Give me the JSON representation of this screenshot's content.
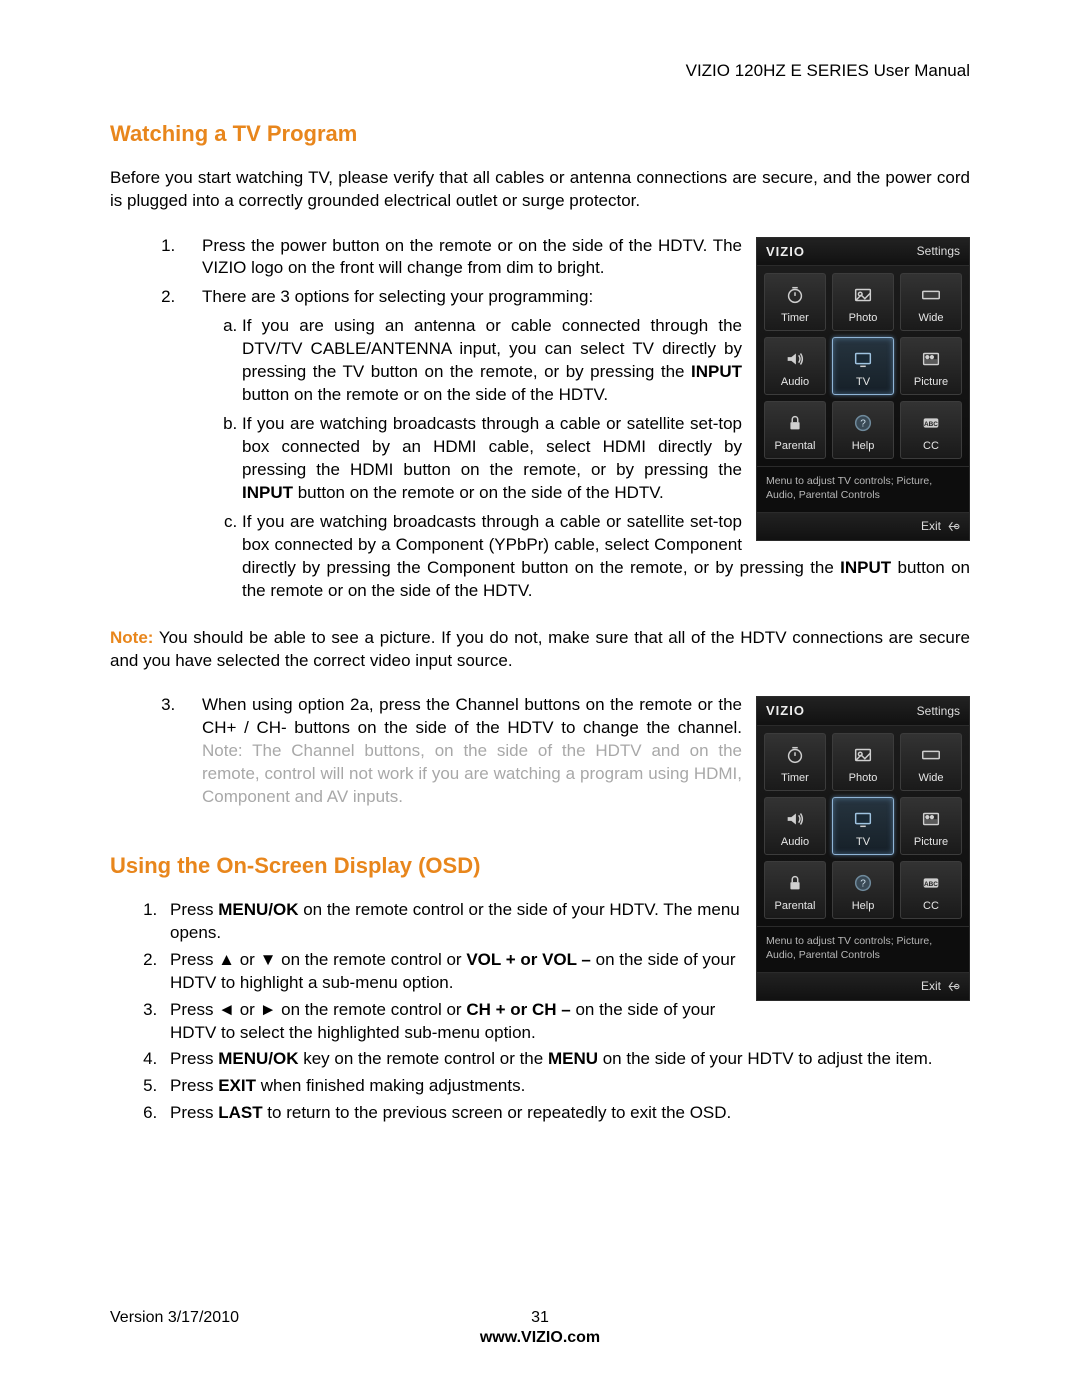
{
  "header": {
    "title": "VIZIO 120HZ E SERIES User Manual"
  },
  "section1": {
    "title": "Watching a TV Program",
    "intro": "Before you start watching TV, please verify that all cables or antenna connections are secure, and the power cord is plugged into a correctly grounded electrical outlet or surge protector.",
    "item1": "Press the power button on the remote or on the side of the HDTV. The VIZIO logo on the front will change from dim to bright.",
    "item2_lead": "There are 3 options for selecting your programming:",
    "item2a_pre": "If you are using an antenna or cable connected through the DTV/TV CABLE/ANTENNA input, you can select TV directly by pressing the TV button on the remote, or by pressing the ",
    "item2a_bold": "INPUT",
    "item2a_post": " button on the remote or on the side of the HDTV.",
    "item2b_pre": "If you are watching broadcasts through a cable or satellite set-top box connected by an HDMI cable, select HDMI directly by pressing the HDMI button on the remote, or by pressing the ",
    "item2b_bold": "INPUT",
    "item2b_post": " button on the remote or on the side of the HDTV.",
    "item2c_pre": "If you are watching broadcasts through a cable or satellite set-top box connected by a Component (YPbPr) cable, select Component directly by pressing the Component button on the remote, or by pressing the ",
    "item2c_bold": "INPUT",
    "item2c_post": " button on the remote or on the side of the HDTV.",
    "note_label": "Note:",
    "note_body": " You should be able to see a picture. If you do not, make sure that all of the HDTV connections are secure and you have selected the correct video input source.",
    "item3_pre": "When using option 2a, press the Channel buttons on the remote or the CH+ / CH- buttons on the side of the HDTV to change the channel. ",
    "item3_grey": "Note: The Channel buttons, on the side of the HDTV and on the remote, control will not work if you are watching a program using HDMI, Component and AV inputs."
  },
  "section2": {
    "title": "Using the On-Screen Display (OSD)",
    "s1_pre": "Press ",
    "s1_b1": "MENU/OK",
    "s1_post": " on the remote control or the side of your HDTV. The menu opens.",
    "s2_pre": "Press ▲ or ▼ on the remote control or ",
    "s2_b1": "VOL + or VOL –",
    "s2_post": " on the side of your HDTV to highlight a sub-menu option.",
    "s3_pre": "Press ◄ or ► on the remote control or ",
    "s3_b1": "CH + or CH –",
    "s3_post": " on the side of your HDTV to select the highlighted sub-menu option.",
    "s4_pre": "Press ",
    "s4_b1": "MENU/OK",
    "s4_mid": " key on the remote control or the ",
    "s4_b2": "MENU",
    "s4_post": " on the side of your HDTV to adjust the item.",
    "s5_pre": "Press ",
    "s5_b1": "EXIT",
    "s5_post": " when finished making adjustments.",
    "s6_pre": "Press ",
    "s6_b1": "LAST",
    "s6_post": " to return to the previous screen or repeatedly to exit the OSD."
  },
  "osd": {
    "brand": "VIZIO",
    "topRight": "Settings",
    "help": "Menu to adjust TV controls; Picture, Audio, Parental Controls",
    "exit": "Exit",
    "tiles": [
      {
        "label": "Timer",
        "icon": "timer"
      },
      {
        "label": "Photo",
        "icon": "photo"
      },
      {
        "label": "Wide",
        "icon": "wide"
      },
      {
        "label": "Audio",
        "icon": "audio"
      },
      {
        "label": "TV",
        "icon": "tv",
        "selected": true
      },
      {
        "label": "Picture",
        "icon": "picture"
      },
      {
        "label": "Parental",
        "icon": "lock"
      },
      {
        "label": "Help",
        "icon": "help"
      },
      {
        "label": "CC",
        "icon": "cc"
      }
    ]
  },
  "footer": {
    "version": "Version 3/17/2010",
    "page": "31",
    "link": "www.VIZIO.com"
  },
  "colors": {
    "accent": "#e8861c",
    "text": "#000000",
    "grey": "#a8a8a8",
    "osd_bg": "#111111",
    "osd_tile": "#2a2a2a",
    "osd_sel_border": "#8fb4d6"
  }
}
